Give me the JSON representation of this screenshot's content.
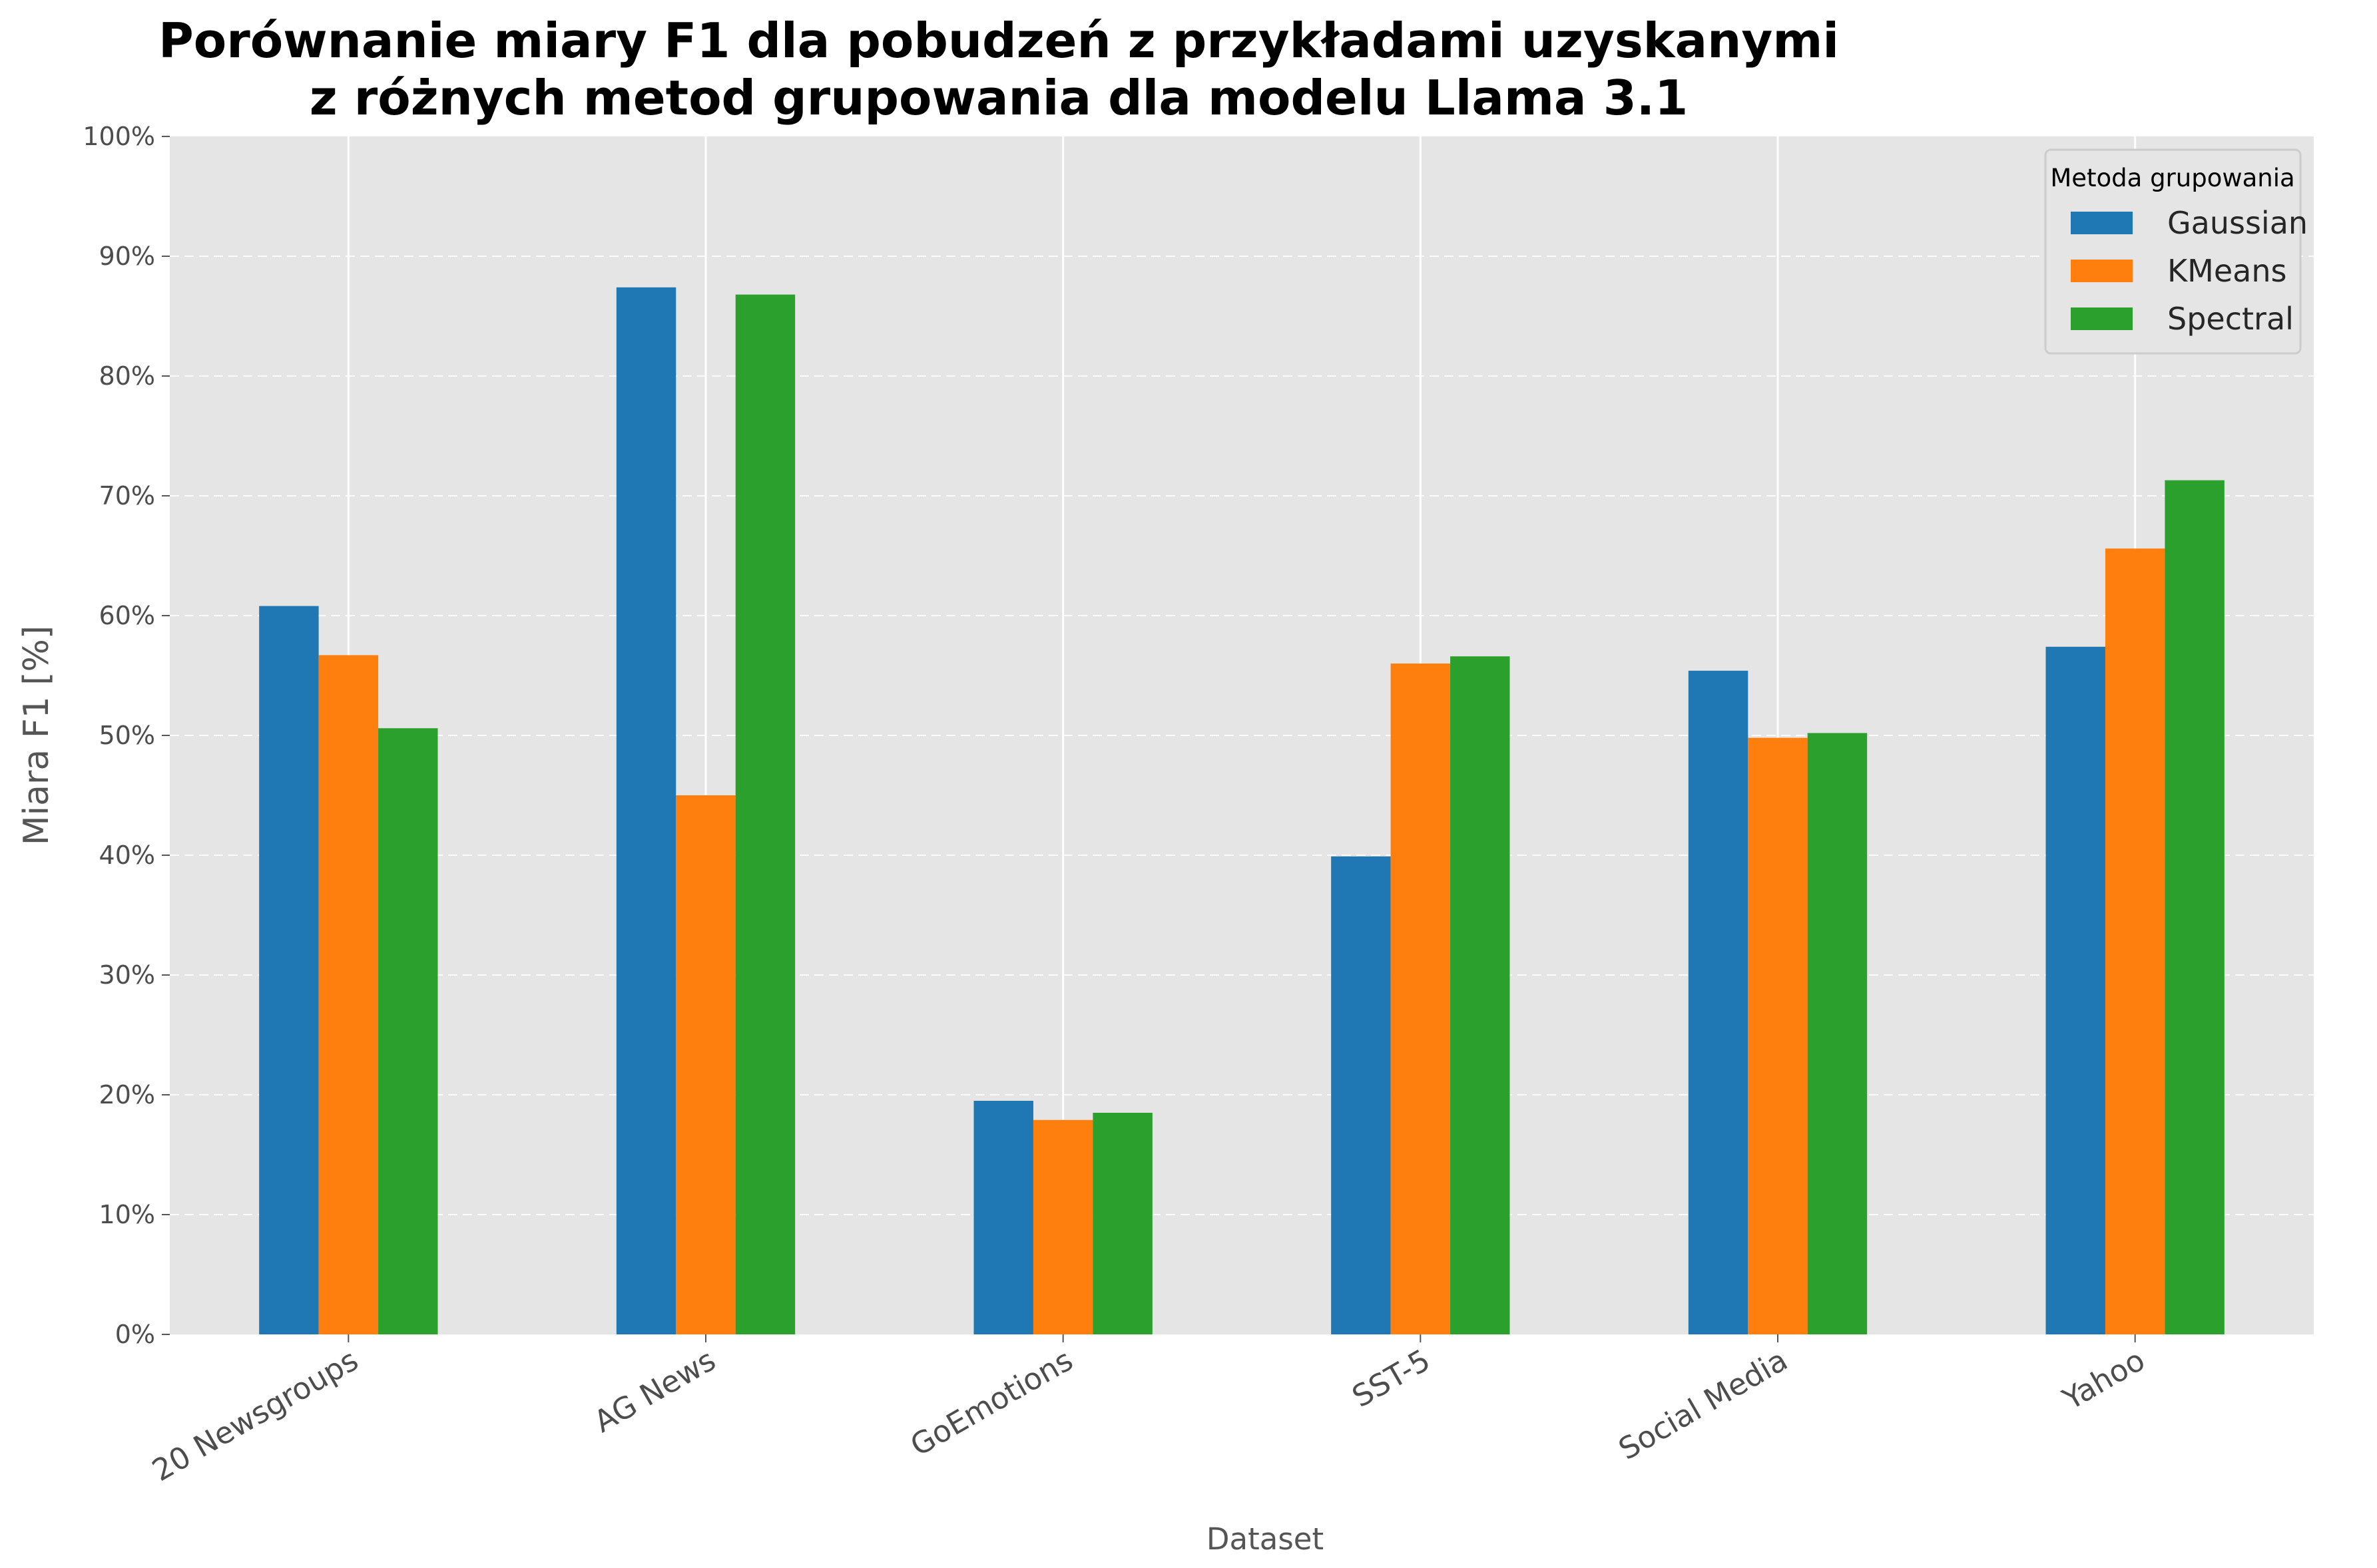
{
  "chart_data": {
    "type": "bar",
    "title_lines": [
      "Porównanie miary F1 dla pobudzeń z przykładami uzyskanymi",
      "z różnych metod grupowania dla modelu Llama 3.1"
    ],
    "xlabel": "Dataset",
    "ylabel": "Miara F1 [%]",
    "ylim": [
      0,
      100
    ],
    "y_ticks": [
      "0%",
      "10%",
      "20%",
      "30%",
      "40%",
      "50%",
      "60%",
      "70%",
      "80%",
      "90%",
      "100%"
    ],
    "categories": [
      "20 Newsgroups",
      "AG News",
      "GoEmotions",
      "SST-5",
      "Social Media",
      "Yahoo"
    ],
    "legend_title": "Metoda grupowania",
    "legend_position": "top-right",
    "grid": "y-dashed, x-solid",
    "series": [
      {
        "name": "Gaussian",
        "color": "#1f77b4",
        "values": [
          60.8,
          87.4,
          19.5,
          39.9,
          55.4,
          57.4
        ]
      },
      {
        "name": "KMeans",
        "color": "#ff7f0e",
        "values": [
          56.7,
          45.0,
          17.9,
          56.0,
          49.8,
          65.6
        ]
      },
      {
        "name": "Spectral",
        "color": "#2ca02c",
        "values": [
          50.6,
          86.8,
          18.5,
          56.6,
          50.2,
          71.3
        ]
      }
    ]
  }
}
